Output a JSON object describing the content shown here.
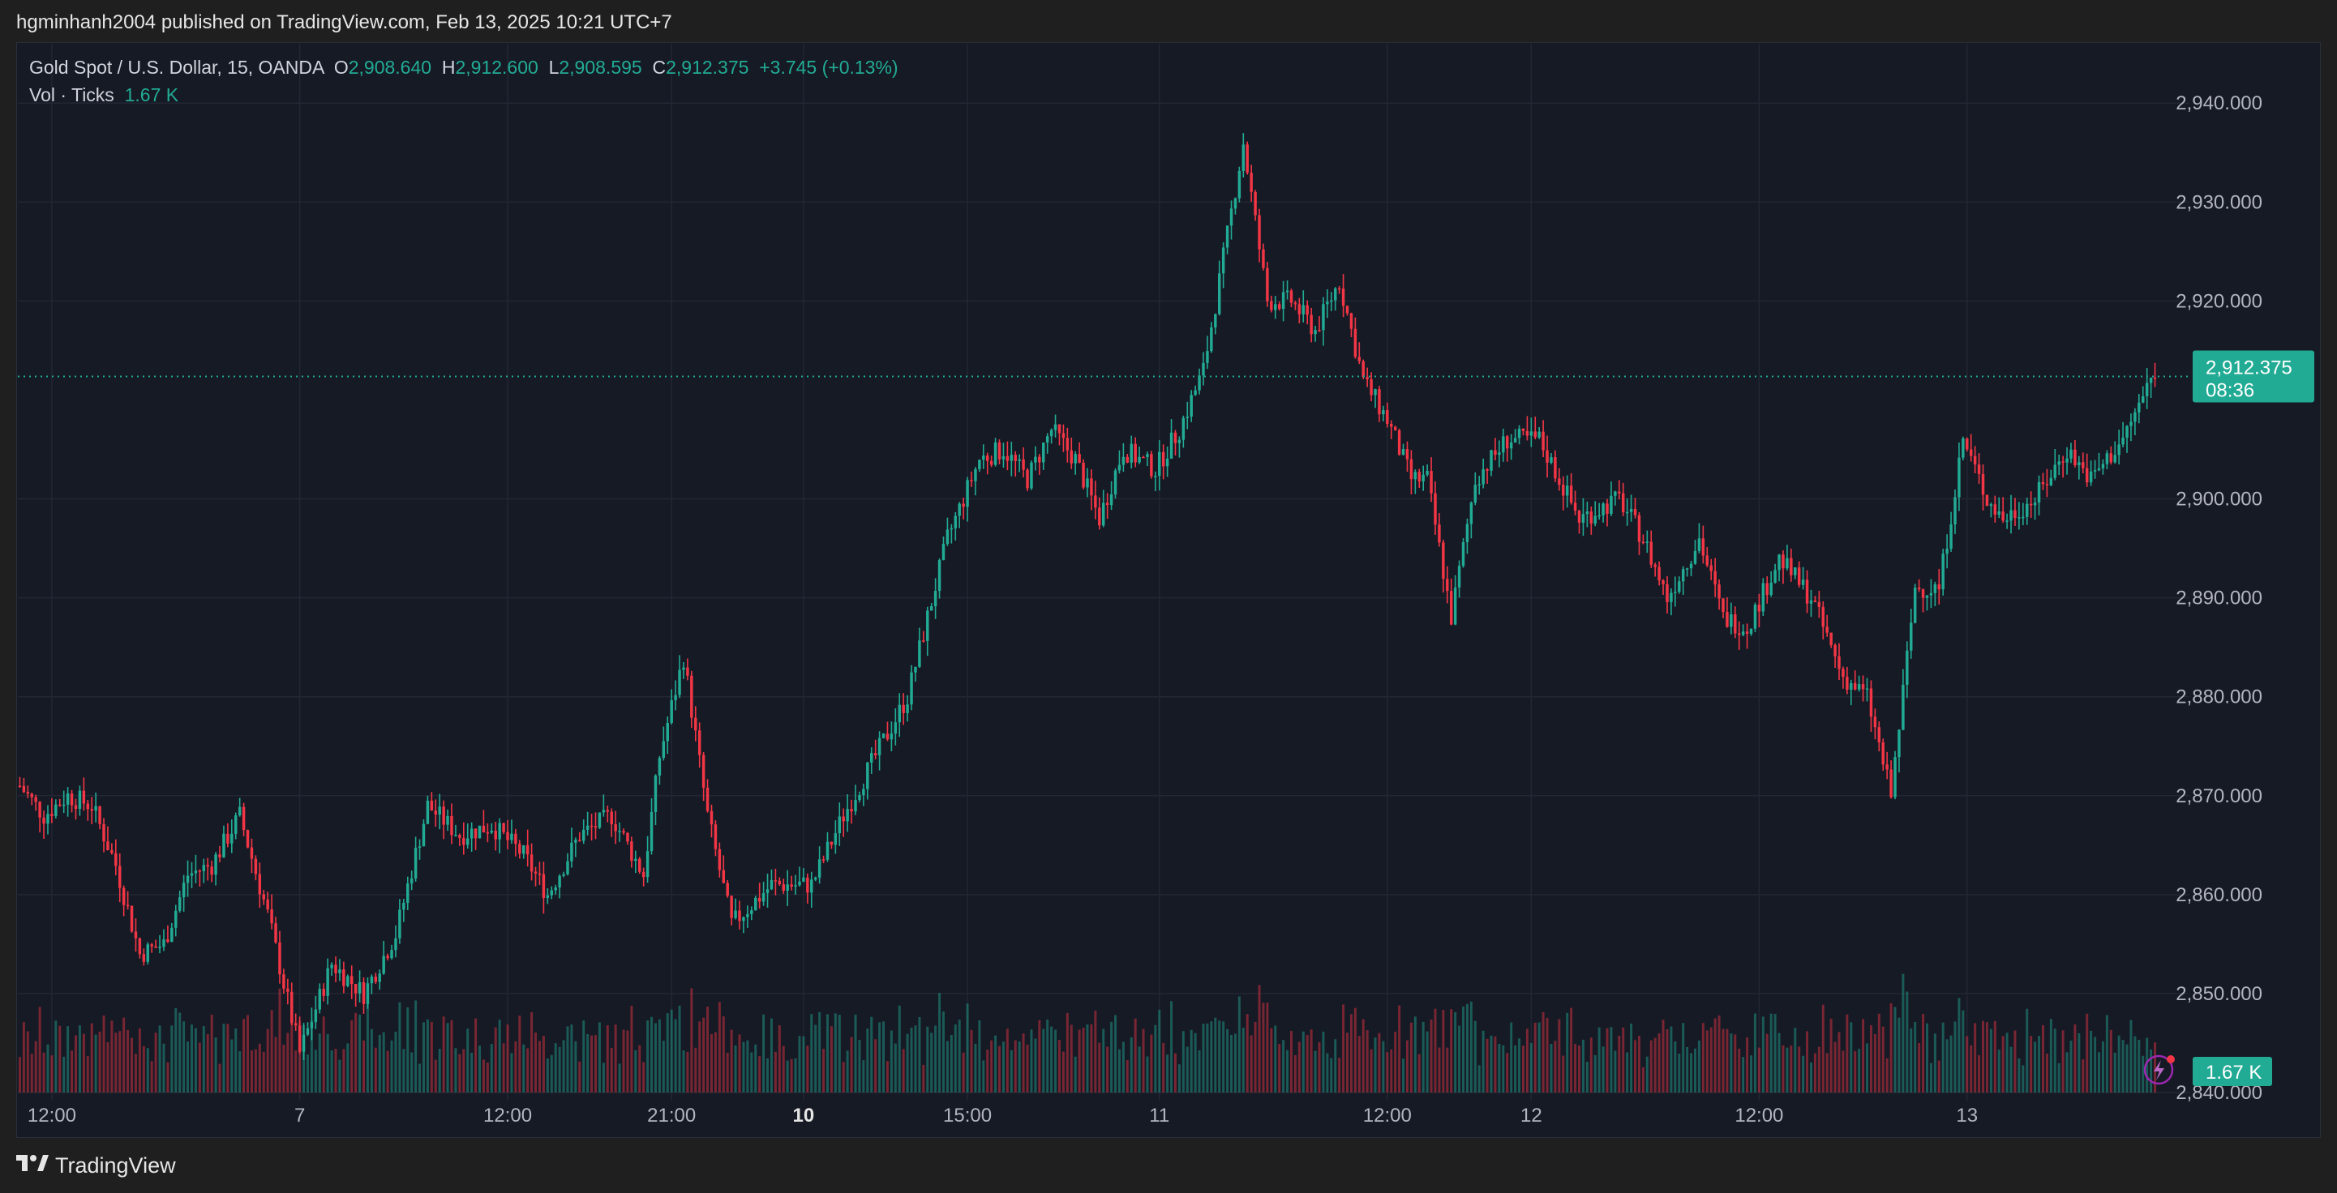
{
  "publisher": "hgminhanh2004 published on TradingView.com, Feb 13, 2025 10:21 UTC+7",
  "legend": {
    "symbol": "Gold Spot / U.S. Dollar, 15, OANDA",
    "o_label": "O",
    "o_value": "2,908.640",
    "h_label": "H",
    "h_value": "2,912.600",
    "l_label": "L",
    "l_value": "2,908.595",
    "c_label": "C",
    "c_value": "2,912.375",
    "change": "+3.745 (+0.13%)",
    "vol_label": "Vol · Ticks",
    "vol_value": "1.67 K"
  },
  "price_tag": {
    "price": "2,912.375",
    "countdown": "08:36",
    "value": 2912.375
  },
  "volume_tag": "1.67 K",
  "footer": "TradingView",
  "colors": {
    "up": "#22ab94",
    "down": "#f23645",
    "bg": "#161a25",
    "grid": "#232733",
    "text": "#b2b5be",
    "tag": "#22ab94"
  },
  "chart_data": {
    "type": "candlestick",
    "ylim": [
      2840,
      2946
    ],
    "y_ticks": [
      {
        "value": 2940,
        "label": "2,940.000"
      },
      {
        "value": 2930,
        "label": "2,930.000"
      },
      {
        "value": 2920,
        "label": "2,920.000"
      },
      {
        "value": 2900,
        "label": "2,900.000"
      },
      {
        "value": 2890,
        "label": "2,890.000"
      },
      {
        "value": 2880,
        "label": "2,880.000"
      },
      {
        "value": 2870,
        "label": "2,870.000"
      },
      {
        "value": 2860,
        "label": "2,860.000"
      },
      {
        "value": 2850,
        "label": "2,850.000"
      },
      {
        "value": 2840,
        "label": "2,840.000"
      }
    ],
    "x_ticks": [
      {
        "label": "12:00",
        "bold": false
      },
      {
        "label": "7",
        "bold": false
      },
      {
        "label": "12:00",
        "bold": false
      },
      {
        "label": "21:00",
        "bold": false
      },
      {
        "label": "10",
        "bold": true
      },
      {
        "label": "15:00",
        "bold": false
      },
      {
        "label": "11",
        "bold": false
      },
      {
        "label": "12:00",
        "bold": false
      },
      {
        "label": "12",
        "bold": false
      },
      {
        "label": "12:00",
        "bold": false
      },
      {
        "label": "13",
        "bold": false
      }
    ],
    "x_tick_bars": [
      8,
      70,
      122,
      163,
      196,
      237,
      285,
      342,
      378,
      435,
      487
    ],
    "bar_count": 535,
    "price_path": [
      [
        0,
        2871
      ],
      [
        6,
        2868
      ],
      [
        12,
        2870
      ],
      [
        18,
        2869
      ],
      [
        24,
        2863
      ],
      [
        30,
        2854
      ],
      [
        36,
        2855
      ],
      [
        42,
        2862
      ],
      [
        48,
        2863
      ],
      [
        55,
        2868
      ],
      [
        62,
        2858
      ],
      [
        70,
        2844
      ],
      [
        78,
        2853
      ],
      [
        86,
        2850
      ],
      [
        94,
        2856
      ],
      [
        102,
        2869
      ],
      [
        110,
        2866
      ],
      [
        118,
        2867
      ],
      [
        126,
        2864
      ],
      [
        132,
        2860
      ],
      [
        140,
        2866
      ],
      [
        148,
        2868
      ],
      [
        156,
        2862
      ],
      [
        160,
        2874
      ],
      [
        166,
        2884
      ],
      [
        172,
        2868
      ],
      [
        178,
        2857
      ],
      [
        188,
        2861
      ],
      [
        198,
        2861
      ],
      [
        206,
        2868
      ],
      [
        214,
        2874
      ],
      [
        222,
        2880
      ],
      [
        232,
        2896
      ],
      [
        240,
        2904
      ],
      [
        246,
        2905
      ],
      [
        252,
        2902
      ],
      [
        258,
        2907
      ],
      [
        264,
        2904
      ],
      [
        270,
        2898
      ],
      [
        276,
        2905
      ],
      [
        284,
        2903
      ],
      [
        290,
        2907
      ],
      [
        296,
        2913
      ],
      [
        300,
        2922
      ],
      [
        306,
        2936
      ],
      [
        312,
        2920
      ],
      [
        318,
        2920
      ],
      [
        324,
        2917
      ],
      [
        330,
        2922
      ],
      [
        336,
        2912
      ],
      [
        342,
        2908
      ],
      [
        348,
        2902
      ],
      [
        352,
        2902
      ],
      [
        358,
        2888
      ],
      [
        364,
        2902
      ],
      [
        372,
        2906
      ],
      [
        380,
        2906
      ],
      [
        390,
        2898
      ],
      [
        400,
        2900
      ],
      [
        406,
        2896
      ],
      [
        412,
        2890
      ],
      [
        420,
        2896
      ],
      [
        426,
        2888
      ],
      [
        432,
        2887
      ],
      [
        440,
        2894
      ],
      [
        448,
        2890
      ],
      [
        456,
        2882
      ],
      [
        462,
        2880
      ],
      [
        468,
        2870
      ],
      [
        474,
        2891
      ],
      [
        480,
        2891
      ],
      [
        486,
        2906
      ],
      [
        492,
        2900
      ],
      [
        496,
        2898
      ],
      [
        504,
        2900
      ],
      [
        512,
        2905
      ],
      [
        518,
        2902
      ],
      [
        526,
        2906
      ],
      [
        534,
        2913
      ]
    ],
    "volume_ylim": [
      0,
      2.4
    ],
    "volume_hint": "1.67 K"
  }
}
